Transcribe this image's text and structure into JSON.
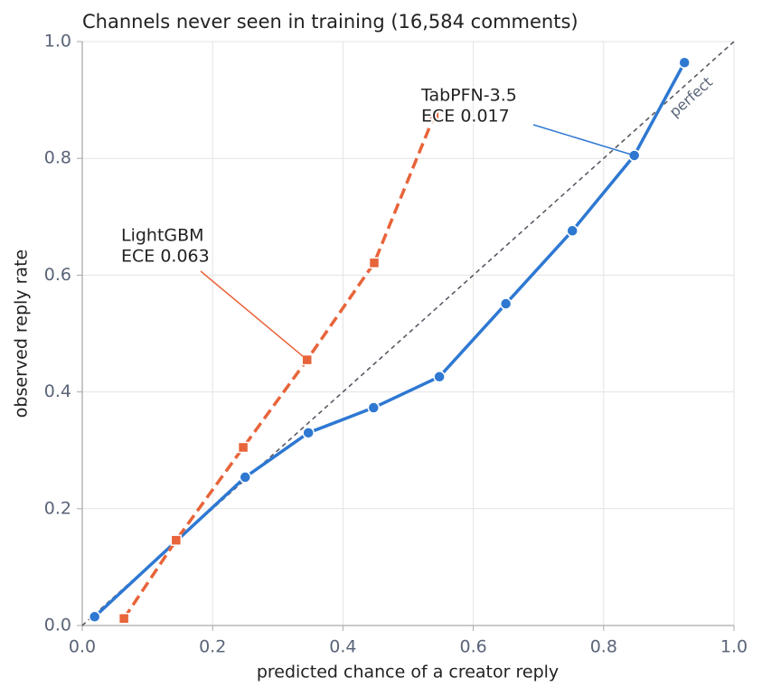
{
  "chart_data": {
    "type": "line",
    "title": "Channels never seen in training (16,584 comments)",
    "xlabel": "predicted chance of a creator reply",
    "ylabel": "observed reply rate",
    "xlim": [
      0,
      1
    ],
    "ylim": [
      0,
      1
    ],
    "xticks": [
      {
        "value": 0,
        "label": "0.0"
      },
      0.2,
      0.4,
      0.6,
      0.8,
      {
        "value": 1,
        "label": "1.0"
      }
    ],
    "yticks": [
      {
        "value": 0,
        "label": "0.0"
      },
      0.2,
      0.4,
      0.6,
      0.8,
      {
        "value": 1,
        "label": "1.0"
      }
    ],
    "grid": true,
    "diagonal_label": "perfect",
    "series": [
      {
        "name": "TabPFN-3.5",
        "color": "#2e78d2",
        "marker": "circle",
        "dash": false,
        "x": [
          0.019,
          0.25,
          0.347,
          0.447,
          0.548,
          0.65,
          0.752,
          0.847,
          0.924
        ],
        "values": [
          0.015,
          0.254,
          0.33,
          0.373,
          0.426,
          0.551,
          0.676,
          0.805,
          0.964
        ]
      },
      {
        "name": "LightGBM",
        "color": "#e8643a",
        "marker": "square",
        "dash": true,
        "x": [
          0.064,
          0.144,
          0.247,
          0.345,
          0.448,
          0.54
        ],
        "values": [
          0.012,
          0.146,
          0.305,
          0.455,
          0.621,
          0.873
        ]
      }
    ],
    "annotations": [
      {
        "lines": [
          "TabPFN-3.5",
          "ECE 0.017"
        ]
      },
      {
        "lines": [
          "LightGBM",
          "ECE 0.063"
        ]
      }
    ]
  }
}
